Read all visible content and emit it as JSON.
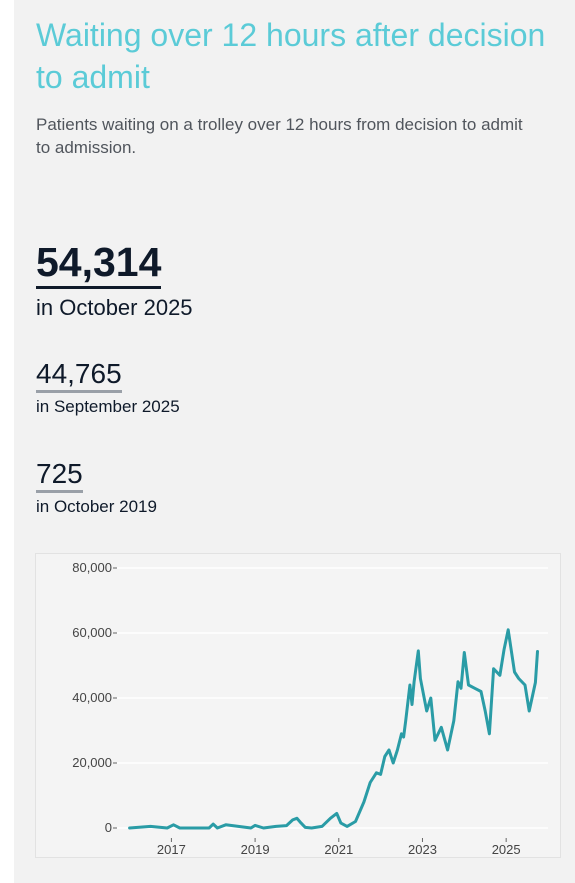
{
  "header": {
    "title": "Waiting over 12 hours after decision to admit",
    "subtitle": "Patients waiting on a trolley over 12 hours from decision to admit to admission."
  },
  "stats": [
    {
      "value": "54,314",
      "label": "in October 2025"
    },
    {
      "value": "44,765",
      "label": "in September 2025"
    },
    {
      "value": "725",
      "label": "in October 2019"
    }
  ],
  "colors": {
    "title": "#5bcbd7",
    "line": "#2a9ca6"
  },
  "chart_data": {
    "type": "line",
    "title": "",
    "xlabel": "",
    "ylabel": "",
    "xlim": [
      2015.7,
      2026.0
    ],
    "ylim": [
      0,
      80000
    ],
    "yticks": [
      0,
      20000,
      40000,
      60000,
      80000
    ],
    "ytick_labels": [
      "0",
      "20,000",
      "40,000",
      "60,000",
      "80,000"
    ],
    "xticks": [
      2017,
      2019,
      2021,
      2023,
      2025
    ],
    "xtick_labels": [
      "2017",
      "2019",
      "2021",
      "2023",
      "2025"
    ],
    "grid": true,
    "legend": "none",
    "series": [
      {
        "name": "",
        "x": [
          2016.0,
          2016.5,
          2016.9,
          2017.05,
          2017.2,
          2017.6,
          2017.9,
          2018.0,
          2018.1,
          2018.3,
          2018.9,
          2019.0,
          2019.2,
          2019.5,
          2019.75,
          2019.9,
          2020.0,
          2020.1,
          2020.2,
          2020.35,
          2020.6,
          2020.8,
          2020.95,
          2021.05,
          2021.2,
          2021.4,
          2021.6,
          2021.75,
          2021.9,
          2022.0,
          2022.1,
          2022.2,
          2022.3,
          2022.35,
          2022.4,
          2022.5,
          2022.55,
          2022.6,
          2022.7,
          2022.75,
          2022.8,
          2022.9,
          2022.95,
          2023.1,
          2023.2,
          2023.3,
          2023.45,
          2023.6,
          2023.75,
          2023.85,
          2023.92,
          2024.0,
          2024.1,
          2024.25,
          2024.4,
          2024.5,
          2024.6,
          2024.7,
          2024.85,
          2024.95,
          2025.05,
          2025.2,
          2025.3,
          2025.45,
          2025.55,
          2025.7,
          2025.75
        ],
        "values": [
          0,
          500,
          0,
          1000,
          0,
          0,
          0,
          1200,
          0,
          1000,
          0,
          800,
          0,
          500,
          725,
          2500,
          3000,
          1500,
          200,
          0,
          500,
          3000,
          4500,
          1500,
          500,
          2000,
          8000,
          14000,
          17000,
          16500,
          22000,
          24000,
          20000,
          22000,
          24000,
          29000,
          28000,
          33000,
          44000,
          38000,
          45000,
          54500,
          46000,
          36000,
          40000,
          27000,
          31000,
          24000,
          33000,
          45000,
          43000,
          54000,
          44000,
          43000,
          42000,
          36000,
          29000,
          49000,
          47000,
          55000,
          61000,
          48000,
          46000,
          44000,
          36000,
          44765,
          54314
        ]
      }
    ]
  }
}
